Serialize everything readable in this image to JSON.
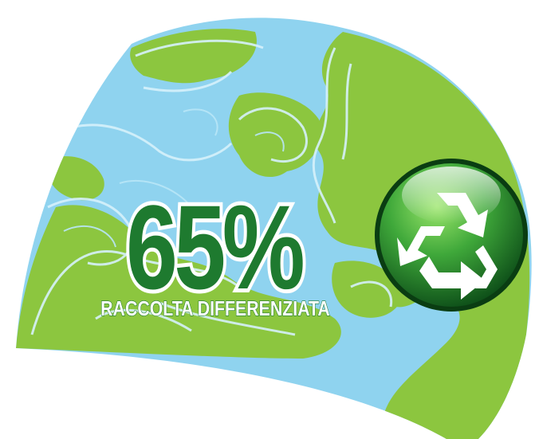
{
  "headline": {
    "percentage": "65%",
    "caption": "RACCOLTA DIFFERENZIATA"
  },
  "badge": {
    "icon": "recycle-icon"
  },
  "colors": {
    "ocean": "#8fd3ef",
    "ocean_line": "#cfeefa",
    "land": "#8cc63f",
    "land_dark": "#6aab2a",
    "headline_green": "#1e7a2f",
    "headline_outline": "#ffffff",
    "badge_light": "#7dd35a",
    "badge_dark": "#0e4f1a"
  }
}
